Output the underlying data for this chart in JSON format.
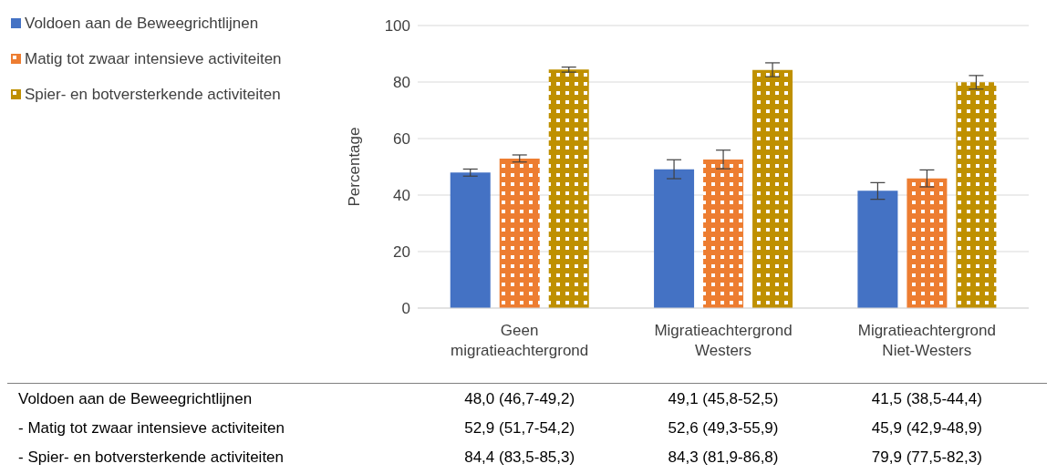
{
  "chart_data": {
    "type": "bar",
    "categories": [
      "Geen migratieachtergrond",
      "Migratieachtergrond Westers",
      "Migratieachtergrond Niet-Westers"
    ],
    "ylabel": "Percentage",
    "ylim": [
      0,
      100
    ],
    "yticks": [
      0,
      20,
      40,
      60,
      80,
      100
    ],
    "grid": "y",
    "legend": "top left",
    "series": [
      {
        "name": "Voldoen aan de Beweegrichtlijnen",
        "color": "#4472c4",
        "values": [
          48.0,
          49.1,
          41.5
        ],
        "errors": [
          [
            46.7,
            49.2
          ],
          [
            45.8,
            52.5
          ],
          [
            38.5,
            44.4
          ]
        ],
        "value_labels": [
          "48,0 (46,7-49,2)",
          "49,1 (45,8-52,5)",
          "41,5 (38,5-44,4)"
        ]
      },
      {
        "name": "Matig tot zwaar intensieve activiteiten",
        "color": "#ed7d31",
        "values": [
          52.9,
          52.6,
          45.9
        ],
        "errors": [
          [
            51.7,
            54.2
          ],
          [
            49.3,
            55.9
          ],
          [
            42.9,
            48.9
          ]
        ],
        "value_labels": [
          "52,9 (51,7-54,2)",
          "52,6 (49,3-55,9)",
          "45,9 (42,9-48,9)"
        ]
      },
      {
        "name": "Spier- en botversterkende activiteiten",
        "color": "#bf9000",
        "values": [
          84.4,
          84.3,
          79.9
        ],
        "errors": [
          [
            83.5,
            85.3
          ],
          [
            81.9,
            86.8
          ],
          [
            77.5,
            82.3
          ]
        ],
        "value_labels": [
          "84,4 (83,5-85,3)",
          "84,3 (81,9-86,8)",
          "79,9 (77,5-82,3)"
        ]
      }
    ],
    "annotations": [
      "Voldoen aan de Beweegrichtlijnen",
      "- Matig tot zwaar intensieve activiteiten",
      "- Spier- en botversterkende activiteiten"
    ]
  }
}
